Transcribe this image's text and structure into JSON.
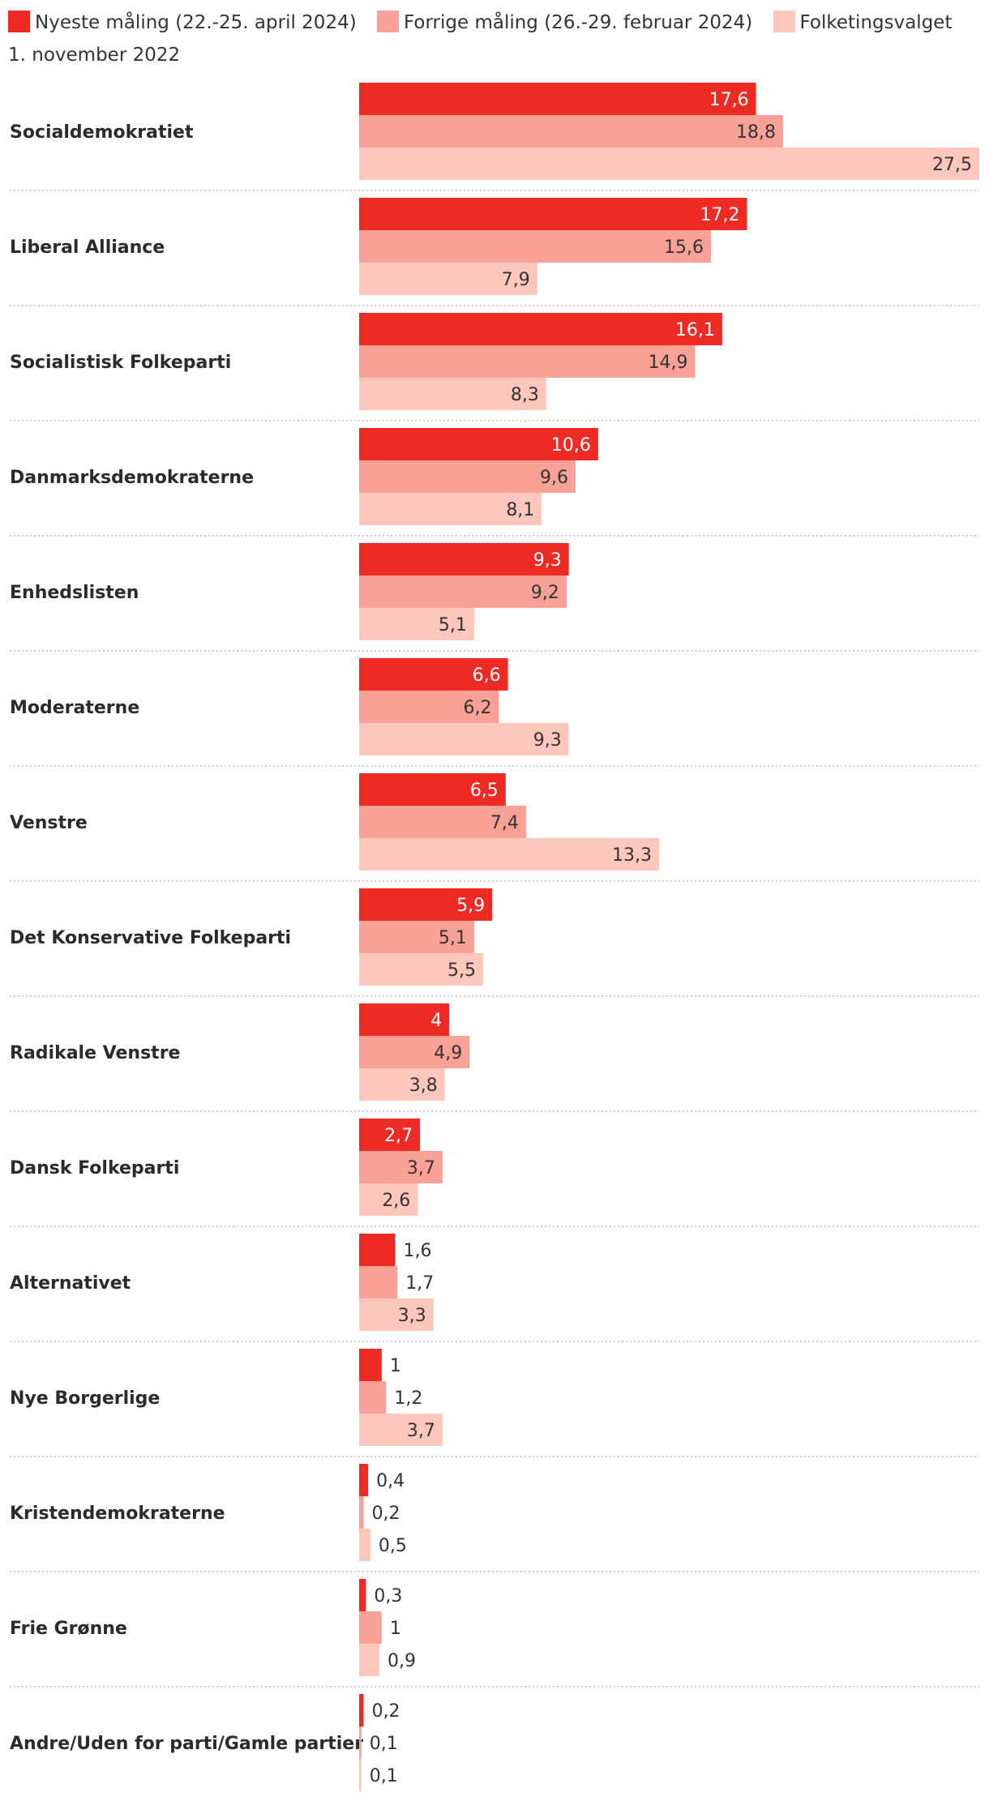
{
  "chart_data": {
    "type": "bar",
    "orientation": "horizontal",
    "categories": [
      "Socialdemokratiet",
      "Liberal Alliance",
      "Socialistisk Folkeparti",
      "Danmarksdemokraterne",
      "Enhedslisten",
      "Moderaterne",
      "Venstre",
      "Det Konservative Folkeparti",
      "Radikale Venstre",
      "Dansk Folkeparti",
      "Alternativet",
      "Nye Borgerlige",
      "Kristendemokraterne",
      "Frie Grønne",
      "Andre/Uden for parti/Gamle partier"
    ],
    "series": [
      {
        "name": "Nyeste måling (22.-25. april 2024)",
        "color": "#ee2a24",
        "values": [
          17.6,
          17.2,
          16.1,
          10.6,
          9.3,
          6.6,
          6.5,
          5.9,
          4,
          2.7,
          1.6,
          1,
          0.4,
          0.3,
          0.2
        ],
        "labels": [
          "17,6",
          "17,2",
          "16,1",
          "10,6",
          "9,3",
          "6,6",
          "6,5",
          "5,9",
          "4",
          "2,7",
          "1,6",
          "1",
          "0,4",
          "0,3",
          "0,2"
        ]
      },
      {
        "name": "Forrige måling (26.-29. februar 2024)",
        "color": "#f9a097",
        "values": [
          18.8,
          15.6,
          14.9,
          9.6,
          9.2,
          6.2,
          7.4,
          5.1,
          4.9,
          3.7,
          1.7,
          1.2,
          0.2,
          1,
          0.1
        ],
        "labels": [
          "18,8",
          "15,6",
          "14,9",
          "9,6",
          "9,2",
          "6,2",
          "7,4",
          "5,1",
          "4,9",
          "3,7",
          "1,7",
          "1,2",
          "0,2",
          "1",
          "0,1"
        ]
      },
      {
        "name": "Folketingsvalget 1. november 2022",
        "color": "#fdc7bb",
        "values": [
          27.5,
          7.9,
          8.3,
          8.1,
          5.1,
          9.3,
          13.3,
          5.5,
          3.8,
          2.6,
          3.3,
          3.7,
          0.5,
          0.9,
          0.1
        ],
        "labels": [
          "27,5",
          "7,9",
          "8,3",
          "8,1",
          "5,1",
          "9,3",
          "13,3",
          "5,5",
          "3,8",
          "2,6",
          "3,3",
          "3,7",
          "0,5",
          "0,9",
          "0,1"
        ]
      }
    ],
    "xlim": [
      0,
      27.5
    ],
    "grid": false,
    "legend_position": "top"
  }
}
